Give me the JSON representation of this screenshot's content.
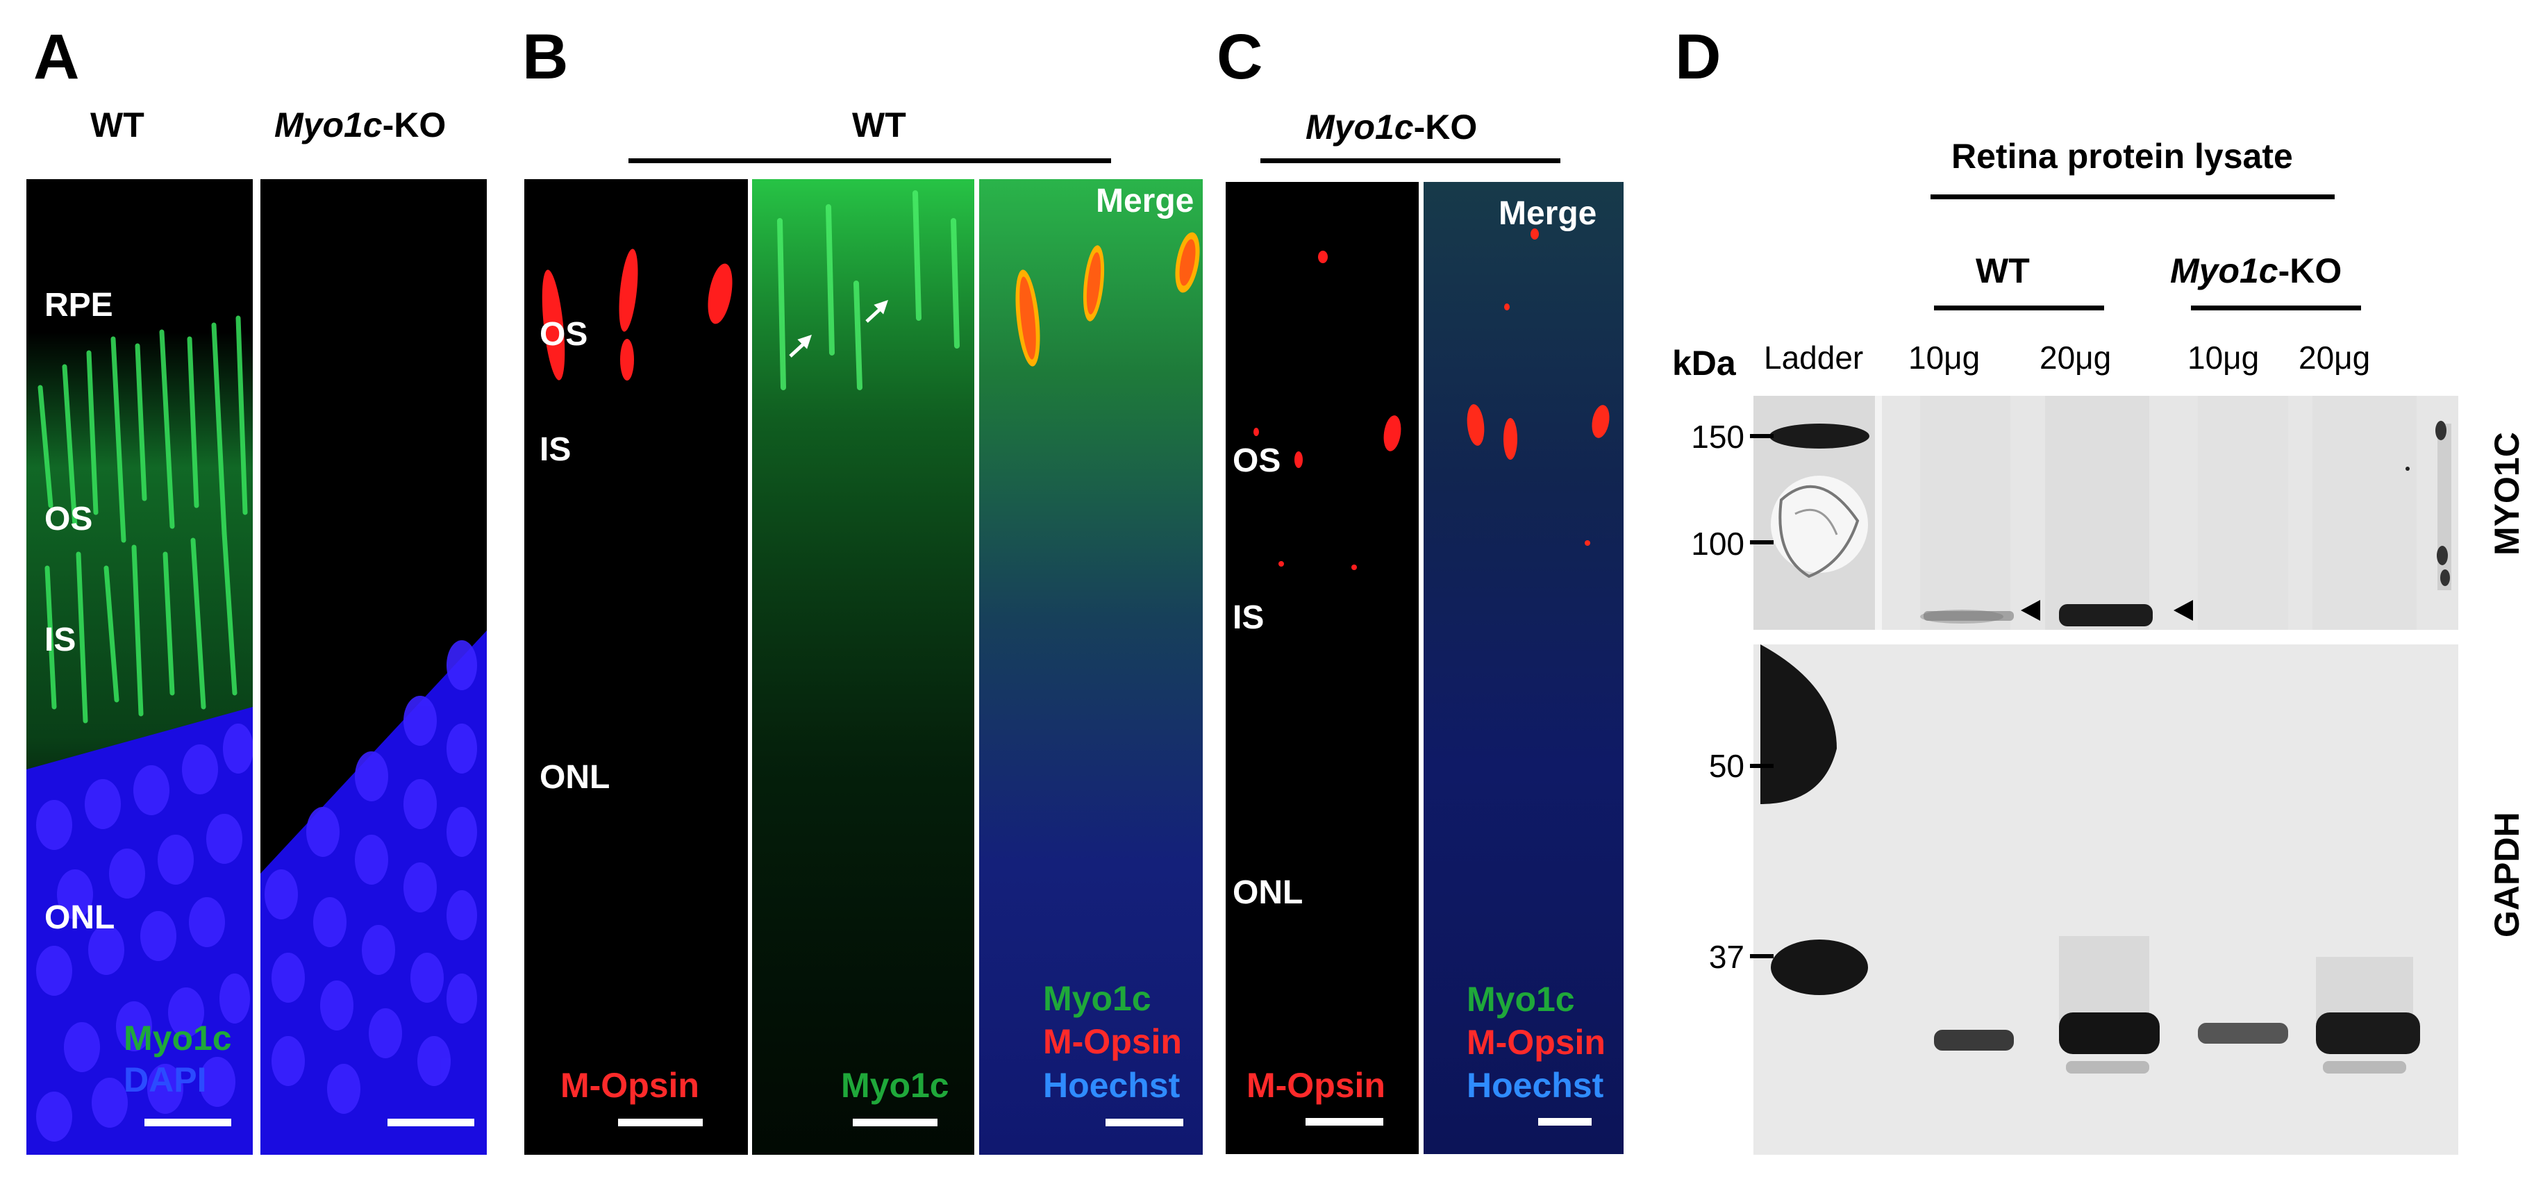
{
  "panels": {
    "a": {
      "letter": "A",
      "left_header": "WT",
      "right_header_italic": "Myo1c",
      "right_header_suffix": "-KO",
      "layers": [
        "RPE",
        "OS",
        "IS",
        "ONL"
      ],
      "channels": [
        {
          "text": "Myo1c",
          "color": "#1fa83a"
        },
        {
          "text": "DAPI",
          "color": "#2b4bff"
        }
      ]
    },
    "b": {
      "letter": "B",
      "header": "WT",
      "layers": [
        "OS",
        "IS",
        "ONL"
      ],
      "image1_channel": {
        "text": "M-Opsin",
        "color": "#ff2a2a"
      },
      "image2_channel": {
        "text": "Myo1c",
        "color": "#1fa83a"
      },
      "merge_label": "Merge",
      "merge_channels": [
        {
          "text": "Myo1c",
          "color": "#1fa83a"
        },
        {
          "text": "M-Opsin",
          "color": "#ff2a2a"
        },
        {
          "text": "Hoechst",
          "color": "#2f8cff"
        }
      ]
    },
    "c": {
      "letter": "C",
      "header_italic": "Myo1c",
      "header_suffix": "-KO",
      "layers": [
        "OS",
        "IS",
        "ONL"
      ],
      "image1_channel": {
        "text": "M-Opsin",
        "color": "#ff2a2a"
      },
      "merge_label": "Merge",
      "merge_channels": [
        {
          "text": "Myo1c",
          "color": "#1fa83a"
        },
        {
          "text": "M-Opsin",
          "color": "#ff2a2a"
        },
        {
          "text": "Hoechst",
          "color": "#2f8cff"
        }
      ]
    },
    "d": {
      "letter": "D",
      "title": "Retina protein lysate",
      "group_wt": "WT",
      "group_ko_italic": "Myo1c",
      "group_ko_suffix": "-KO",
      "unit": "kDa",
      "lanes": [
        "Ladder",
        "10μg",
        "20μg",
        "10μg",
        "20μg"
      ],
      "top_markers": [
        "150",
        "100"
      ],
      "bottom_markers": [
        "50",
        "37"
      ],
      "top_blot_label": "MYO1C",
      "bottom_blot_label": "GAPDH"
    }
  }
}
